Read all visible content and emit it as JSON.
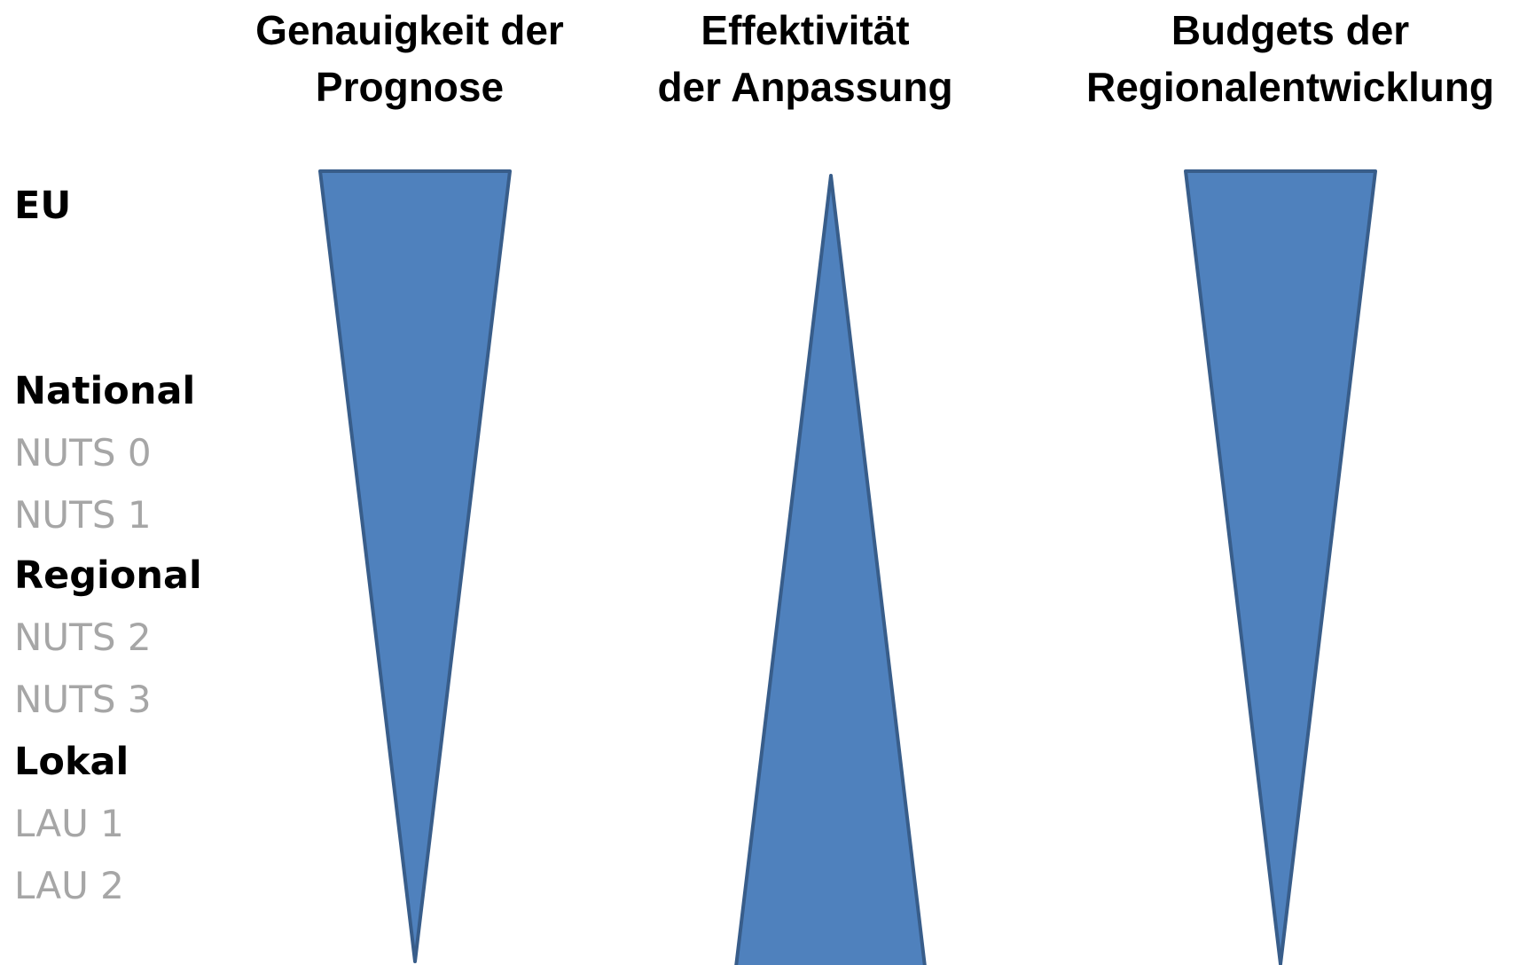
{
  "headers": [
    [
      "Genauigkeit der",
      "Prognose"
    ],
    [
      "Effektivität",
      "der Anpassung"
    ],
    [
      "Budgets der",
      "Regionalentwicklung"
    ]
  ],
  "levels": [
    {
      "name": "EU",
      "subs": []
    },
    {
      "name": "National",
      "subs": [
        "NUTS 0",
        "NUTS 1"
      ]
    },
    {
      "name": "Regional",
      "subs": [
        "NUTS 2",
        "NUTS 3"
      ]
    },
    {
      "name": "Lokal",
      "subs": [
        "LAU 1",
        "LAU 2"
      ]
    }
  ]
}
